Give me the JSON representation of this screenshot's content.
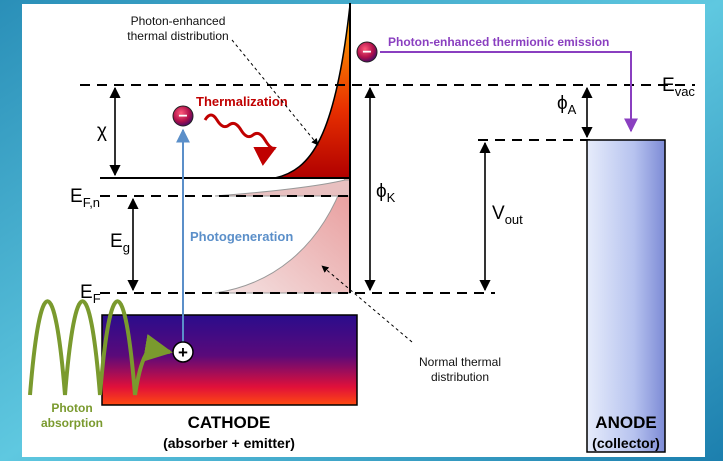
{
  "annotations": {
    "enhanced_distribution": [
      "Photon-enhanced",
      "thermal distribution"
    ],
    "emission": "Photon-enhanced thermionic emission",
    "thermalization": "Thermalization",
    "photogeneration": "Photogeneration",
    "normal_distribution": [
      "Normal thermal",
      "distribution"
    ],
    "absorption": [
      "Photon",
      "absorption"
    ]
  },
  "levels": {
    "chi": "χ",
    "efn": {
      "main": "E",
      "sub": "F,n"
    },
    "eg": {
      "main": "E",
      "sub": "g"
    },
    "ef": {
      "main": "E",
      "sub": "F"
    },
    "phik": {
      "main": "ϕ",
      "sub": "K"
    },
    "vout": {
      "main": "V",
      "sub": "out"
    },
    "phia": {
      "main": "ϕ",
      "sub": "A"
    },
    "evac": {
      "main": "E",
      "sub": "vac"
    }
  },
  "carriers": {
    "electron": "−",
    "hole": "+"
  },
  "cathode": {
    "title": "CATHODE",
    "subtitle": "(absorber + emitter)"
  },
  "anode": {
    "title": "ANODE",
    "subtitle": "(collector)"
  }
}
